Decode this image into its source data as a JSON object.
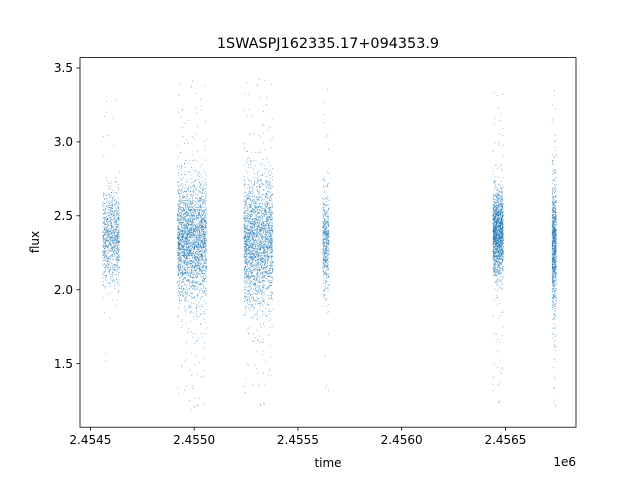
{
  "chart_data": {
    "type": "scatter",
    "title": "1SWASPJ162335.17+094353.9",
    "xlabel": "time",
    "ylabel": "flux",
    "x_offset_label": "1e6",
    "xlim": [
      2454450,
      2456840
    ],
    "ylim": [
      1.07,
      3.57
    ],
    "x_ticks": [
      2454500,
      2455000,
      2455500,
      2456000,
      2456500
    ],
    "x_tick_labels": [
      "2.4545",
      "2.4550",
      "2.4555",
      "2.4560",
      "2.4565"
    ],
    "y_ticks": [
      1.5,
      2.0,
      2.5,
      3.0,
      3.5
    ],
    "y_tick_labels": [
      "1.5",
      "2.0",
      "2.5",
      "3.0",
      "3.5"
    ],
    "grid": false,
    "marker_color": "#1f77b4",
    "series": [
      {
        "clusters": [
          {
            "x_range": [
              2454560,
              2454640
            ],
            "center": 2.35,
            "spread": 0.16,
            "min": 1.45,
            "max": 3.33,
            "density": 900
          },
          {
            "x_range": [
              2454920,
              2455060
            ],
            "center": 2.33,
            "spread": 0.2,
            "min": 1.18,
            "max": 3.44,
            "density": 2600
          },
          {
            "x_range": [
              2455240,
              2455380
            ],
            "center": 2.33,
            "spread": 0.22,
            "min": 1.19,
            "max": 3.45,
            "density": 2400
          },
          {
            "x_range": [
              2455620,
              2455650
            ],
            "center": 2.32,
            "spread": 0.17,
            "min": 1.27,
            "max": 3.39,
            "density": 500
          },
          {
            "x_range": [
              2456440,
              2456490
            ],
            "center": 2.38,
            "spread": 0.14,
            "min": 1.21,
            "max": 3.38,
            "density": 1600
          },
          {
            "x_range": [
              2456725,
              2456745
            ],
            "center": 2.3,
            "spread": 0.22,
            "min": 1.17,
            "max": 3.37,
            "density": 900
          }
        ]
      }
    ]
  }
}
